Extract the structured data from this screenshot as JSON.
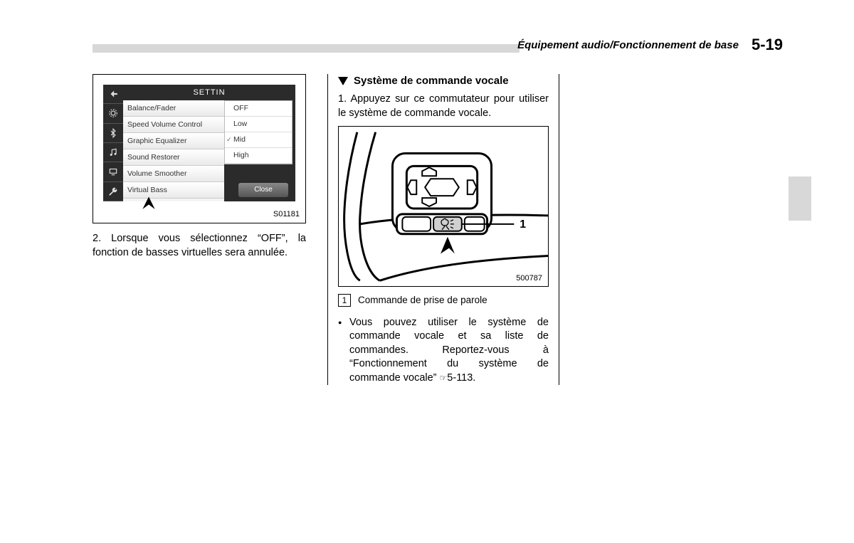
{
  "header": {
    "breadcrumb": "Équipement audio/Fonctionnement de base",
    "page_number": "5-19"
  },
  "column1": {
    "settings_figure": {
      "title": "SETTIN",
      "menu_items": [
        "Balance/Fader",
        "Speed Volume Control",
        "Graphic Equalizer",
        "Sound Restorer",
        "Volume Smoother",
        "Virtual Bass"
      ],
      "dropdown_options": [
        "OFF",
        "Low",
        "Mid",
        "High"
      ],
      "dropdown_selected_index": 2,
      "close_label": "Close",
      "figure_code": "S01181"
    },
    "paragraph": "2. Lorsque vous sélectionnez “OFF”, la fonction de basses virtuelles sera annulée."
  },
  "column2": {
    "heading": "Système de commande vocale",
    "step1": "1. Appuyez sur ce commutateur pour utiliser le système de commande vocale.",
    "callout_label": "1",
    "figure_code": "500787",
    "legend": {
      "number": "1",
      "text": "Commande de prise de parole"
    },
    "bullet": "Vous pouvez utiliser le système de commande vocale et sa liste de commandes. Reportez-vous à “Fonctionnement du système de commande vocale” ",
    "bullet_ref": "5-113."
  },
  "colors": {
    "header_bar": "#d8d8d8",
    "screen_dark": "#2b2b2b",
    "screen_light": "#f4f4f4"
  }
}
